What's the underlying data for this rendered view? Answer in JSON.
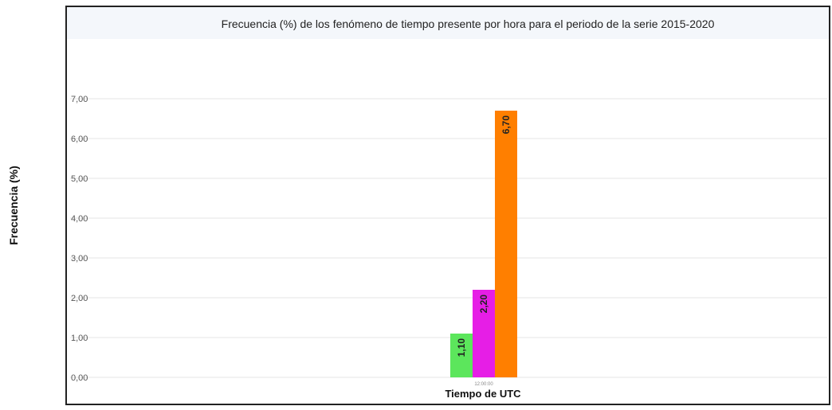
{
  "chart_data": {
    "type": "bar",
    "title": "Frecuencia (%) de los fenómeno de tiempo presente por hora para el periodo de la serie 2015-2020",
    "xlabel": "Tiempo de UTC",
    "ylabel": "Frecuencia (%)",
    "categories": [
      "12:00:00"
    ],
    "series": [
      {
        "values": [
          1.1
        ],
        "color": "#5ce65c",
        "label": "1,10"
      },
      {
        "values": [
          2.2
        ],
        "color": "#e61ee6",
        "label": "2,20"
      },
      {
        "values": [
          6.7
        ],
        "color": "#ff7f00",
        "label": "6,70"
      }
    ],
    "yticks": [
      0,
      1,
      2,
      3,
      4,
      5,
      6,
      7
    ],
    "ytick_labels": [
      "0,00",
      "1,00",
      "2,00",
      "3,00",
      "4,00",
      "5,00",
      "6,00",
      "7,00"
    ],
    "ylim": [
      0,
      7.5
    ],
    "grid": true,
    "legend": "none"
  }
}
